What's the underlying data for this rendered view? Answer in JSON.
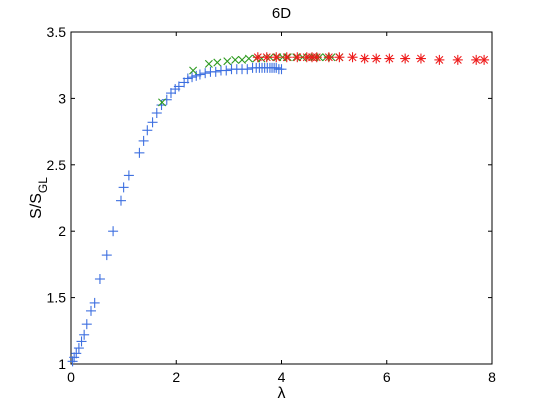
{
  "chart_data": {
    "type": "scatter",
    "title": "6D",
    "xlabel": "λ",
    "ylabel": "S/S",
    "ylabel_sub": "GL",
    "xlim": [
      0,
      8
    ],
    "ylim": [
      1,
      3.5
    ],
    "xticks": [
      0,
      2,
      4,
      6,
      8
    ],
    "xtick_labels": [
      "0",
      "2",
      "4",
      "6",
      "8"
    ],
    "yticks": [
      1,
      1.5,
      2,
      2.5,
      3,
      3.5
    ],
    "ytick_labels": [
      "1",
      "1.5",
      "2",
      "2.5",
      "3",
      "3.5"
    ],
    "grid": false,
    "legend": "none",
    "series": [
      {
        "marker": "plus",
        "color": "#3d6fe0",
        "x": [
          0.03,
          0.06,
          0.1,
          0.15,
          0.2,
          0.25,
          0.3,
          0.38,
          0.45,
          0.55,
          0.68,
          0.8,
          0.95,
          1.0,
          1.1,
          1.3,
          1.38,
          1.45,
          1.55,
          1.63,
          1.72,
          1.82,
          1.9,
          1.98,
          2.05,
          2.15,
          2.22,
          2.3,
          2.38,
          2.45,
          2.55,
          2.65,
          2.75,
          2.85,
          2.95,
          3.05,
          3.15,
          3.25,
          3.35,
          3.45,
          3.52,
          3.58,
          3.63,
          3.68,
          3.73,
          3.78,
          3.82,
          3.86,
          3.9,
          3.95,
          4.0
        ],
        "y": [
          1.02,
          1.05,
          1.08,
          1.12,
          1.17,
          1.22,
          1.3,
          1.4,
          1.46,
          1.64,
          1.82,
          2.0,
          2.23,
          2.33,
          2.42,
          2.59,
          2.68,
          2.76,
          2.82,
          2.89,
          2.95,
          2.99,
          3.04,
          3.07,
          3.09,
          3.12,
          3.15,
          3.16,
          3.17,
          3.18,
          3.19,
          3.2,
          3.2,
          3.21,
          3.21,
          3.22,
          3.22,
          3.22,
          3.22,
          3.23,
          3.23,
          3.23,
          3.23,
          3.23,
          3.23,
          3.23,
          3.23,
          3.23,
          3.23,
          3.22,
          3.22
        ]
      },
      {
        "marker": "cross",
        "color": "#2c9a1e",
        "x": [
          1.73,
          2.32,
          2.62,
          2.78,
          2.97,
          3.12,
          3.25,
          3.38,
          3.52,
          3.62,
          3.78,
          3.92,
          4.02,
          4.12,
          4.28,
          4.4,
          4.52,
          4.63,
          4.72,
          4.85,
          4.95,
          5.1
        ],
        "y": [
          2.97,
          3.21,
          3.26,
          3.27,
          3.28,
          3.29,
          3.29,
          3.3,
          3.3,
          3.3,
          3.31,
          3.31,
          3.31,
          3.31,
          3.31,
          3.31,
          3.31,
          3.31,
          3.31,
          3.31,
          3.31,
          3.31
        ]
      },
      {
        "marker": "star",
        "color": "#ee1c1c",
        "x": [
          3.55,
          3.72,
          3.9,
          4.1,
          4.3,
          4.48,
          4.58,
          4.67,
          4.9,
          5.1,
          5.35,
          5.58,
          5.8,
          6.05,
          6.35,
          6.65,
          7.0,
          7.35,
          7.7,
          7.85
        ],
        "y": [
          3.31,
          3.31,
          3.31,
          3.31,
          3.31,
          3.31,
          3.31,
          3.31,
          3.31,
          3.31,
          3.31,
          3.3,
          3.3,
          3.3,
          3.3,
          3.3,
          3.29,
          3.29,
          3.29,
          3.29
        ]
      }
    ]
  }
}
